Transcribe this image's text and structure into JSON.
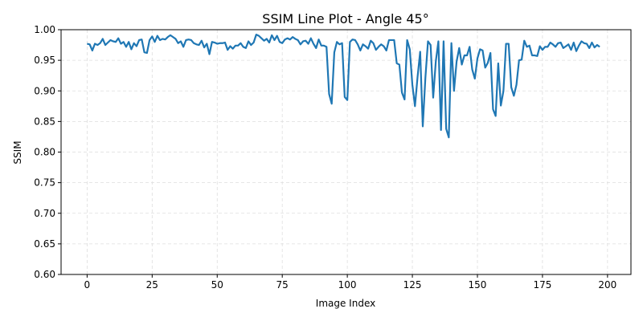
{
  "chart_data": {
    "type": "line",
    "title": "SSIM Line Plot - Angle 45°",
    "xlabel": "Image Index",
    "ylabel": "SSIM",
    "xlim": [
      -10,
      209
    ],
    "ylim": [
      0.6,
      1.0
    ],
    "xticks": [
      0,
      25,
      50,
      75,
      100,
      125,
      150,
      175,
      200
    ],
    "yticks": [
      0.6,
      0.65,
      0.7,
      0.75,
      0.8,
      0.85,
      0.9,
      0.95,
      1.0
    ],
    "ytick_labels": [
      "0.60",
      "0.65",
      "0.70",
      "0.75",
      "0.80",
      "0.85",
      "0.90",
      "0.95",
      "1.00"
    ],
    "grid": true,
    "colors": {
      "line": "#1f77b4",
      "grid": "#dddddd"
    },
    "series": [
      {
        "values": [
          0.977,
          0.976,
          0.966,
          0.977,
          0.975,
          0.978,
          0.985,
          0.975,
          0.979,
          0.983,
          0.981,
          0.98,
          0.986,
          0.977,
          0.98,
          0.972,
          0.98,
          0.968,
          0.978,
          0.973,
          0.983,
          0.984,
          0.963,
          0.962,
          0.983,
          0.989,
          0.98,
          0.99,
          0.983,
          0.985,
          0.984,
          0.988,
          0.991,
          0.988,
          0.985,
          0.978,
          0.981,
          0.972,
          0.983,
          0.984,
          0.983,
          0.978,
          0.976,
          0.975,
          0.982,
          0.971,
          0.977,
          0.96,
          0.98,
          0.979,
          0.977,
          0.978,
          0.978,
          0.979,
          0.967,
          0.973,
          0.969,
          0.974,
          0.974,
          0.978,
          0.972,
          0.97,
          0.981,
          0.975,
          0.979,
          0.992,
          0.99,
          0.986,
          0.982,
          0.985,
          0.979,
          0.991,
          0.983,
          0.99,
          0.98,
          0.978,
          0.984,
          0.986,
          0.984,
          0.988,
          0.985,
          0.983,
          0.976,
          0.981,
          0.982,
          0.977,
          0.986,
          0.977,
          0.97,
          0.984,
          0.974,
          0.974,
          0.972,
          0.895,
          0.879,
          0.963,
          0.98,
          0.976,
          0.978,
          0.89,
          0.885,
          0.98,
          0.984,
          0.983,
          0.976,
          0.966,
          0.976,
          0.973,
          0.969,
          0.982,
          0.978,
          0.967,
          0.972,
          0.976,
          0.973,
          0.966,
          0.983,
          0.983,
          0.983,
          0.945,
          0.943,
          0.897,
          0.886,
          0.983,
          0.968,
          0.91,
          0.875,
          0.923,
          0.964,
          0.842,
          0.921,
          0.981,
          0.975,
          0.889,
          0.948,
          0.981,
          0.836,
          0.981,
          0.838,
          0.824,
          0.978,
          0.9,
          0.948,
          0.97,
          0.943,
          0.958,
          0.958,
          0.972,
          0.935,
          0.92,
          0.953,
          0.968,
          0.966,
          0.938,
          0.946,
          0.962,
          0.87,
          0.859,
          0.945,
          0.876,
          0.9,
          0.977,
          0.977,
          0.906,
          0.892,
          0.91,
          0.95,
          0.951,
          0.982,
          0.972,
          0.974,
          0.958,
          0.958,
          0.957,
          0.973,
          0.967,
          0.972,
          0.972,
          0.979,
          0.976,
          0.972,
          0.978,
          0.979,
          0.97,
          0.973,
          0.976,
          0.967,
          0.979,
          0.965,
          0.974,
          0.981,
          0.978,
          0.977,
          0.97,
          0.979,
          0.971,
          0.975,
          0.972
        ]
      }
    ]
  }
}
